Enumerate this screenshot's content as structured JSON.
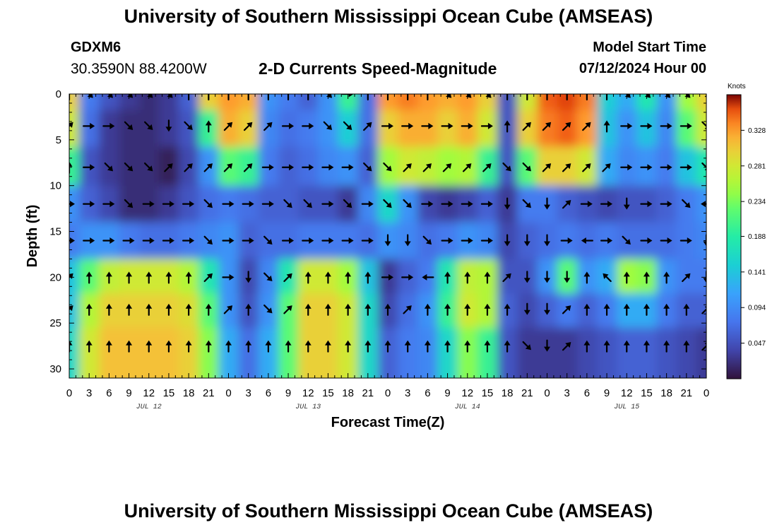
{
  "header": {
    "title": "University of Southern Mississippi Ocean Cube (AMSEAS)",
    "station_id": "GDXM6",
    "coords": "30.3590N  88.4200W",
    "subtitle": "2-D Currents Speed-Magnitude",
    "model_start_label": "Model Start Time",
    "model_start_value": "07/12/2024 Hour 00"
  },
  "footer": {
    "title": "University of Southern Mississippi Ocean Cube (AMSEAS)"
  },
  "chart_data": {
    "type": "heatmap",
    "title": "2-D Currents Speed-Magnitude",
    "xlabel": "Forecast Time(Z)",
    "ylabel": "Depth (ft)",
    "units": "Knots",
    "x_range_hours": [
      0,
      96
    ],
    "y_range_ft": [
      0,
      31
    ],
    "y_inverted": true,
    "x_tick_labels": [
      "0",
      "3",
      "6",
      "9",
      "12",
      "15",
      "18",
      "21",
      "0",
      "3",
      "6",
      "9",
      "12",
      "15",
      "18",
      "21",
      "0",
      "3",
      "6",
      "9",
      "12",
      "15",
      "18",
      "21",
      "0",
      "3",
      "6",
      "9",
      "12",
      "15",
      "18",
      "21",
      "0"
    ],
    "y_ticks": [
      0,
      5,
      10,
      15,
      20,
      25,
      30
    ],
    "date_labels": [
      {
        "label": "JUL 12",
        "hour": 12
      },
      {
        "label": "JUL 13",
        "hour": 36
      },
      {
        "label": "JUL 14",
        "hour": 60
      },
      {
        "label": "JUL 15",
        "hour": 84
      }
    ],
    "colorbar": {
      "label": "Knots",
      "range": [
        0.0,
        0.375
      ],
      "ticks": [
        "0.328",
        "0.281",
        "0.234",
        "0.188",
        "0.141",
        "0.094",
        "0.047"
      ],
      "tick_values": [
        0.328,
        0.281,
        0.234,
        0.188,
        0.141,
        0.094,
        0.047
      ]
    },
    "grid": false,
    "depth_rows_ft": [
      0,
      3.5,
      8,
      12,
      16,
      20,
      23.5,
      27.5
    ],
    "time_cols_hours": [
      0,
      3,
      6,
      9,
      12,
      15,
      18,
      21,
      24,
      27,
      30,
      33,
      36,
      39,
      42,
      45,
      48,
      51,
      54,
      57,
      60,
      63,
      66,
      69,
      72,
      75,
      78,
      81,
      84,
      87,
      90,
      93,
      96
    ],
    "speed_knots": [
      [
        0.3,
        0.08,
        0.05,
        0.03,
        0.02,
        0.03,
        0.06,
        0.3,
        0.33,
        0.32,
        0.1,
        0.08,
        0.06,
        0.1,
        0.2,
        0.07,
        0.33,
        0.34,
        0.33,
        0.32,
        0.33,
        0.3,
        0.05,
        0.28,
        0.35,
        0.36,
        0.34,
        0.15,
        0.12,
        0.18,
        0.1,
        0.25,
        0.3
      ],
      [
        0.28,
        0.07,
        0.03,
        0.02,
        0.02,
        0.03,
        0.05,
        0.2,
        0.32,
        0.3,
        0.09,
        0.07,
        0.08,
        0.1,
        0.15,
        0.07,
        0.3,
        0.32,
        0.32,
        0.3,
        0.32,
        0.28,
        0.05,
        0.3,
        0.34,
        0.35,
        0.33,
        0.14,
        0.1,
        0.14,
        0.09,
        0.22,
        0.28
      ],
      [
        0.2,
        0.05,
        0.03,
        0.02,
        0.02,
        0.01,
        0.04,
        0.1,
        0.22,
        0.2,
        0.08,
        0.06,
        0.07,
        0.09,
        0.1,
        0.06,
        0.25,
        0.28,
        0.27,
        0.25,
        0.26,
        0.2,
        0.05,
        0.22,
        0.3,
        0.3,
        0.28,
        0.12,
        0.09,
        0.1,
        0.08,
        0.14,
        0.18
      ],
      [
        0.1,
        0.06,
        0.04,
        0.02,
        0.02,
        0.03,
        0.05,
        0.07,
        0.08,
        0.07,
        0.06,
        0.06,
        0.05,
        0.05,
        0.03,
        0.09,
        0.16,
        0.1,
        0.04,
        0.03,
        0.04,
        0.06,
        0.03,
        0.08,
        0.08,
        0.06,
        0.05,
        0.04,
        0.05,
        0.05,
        0.06,
        0.08,
        0.1
      ],
      [
        0.08,
        0.1,
        0.1,
        0.08,
        0.07,
        0.07,
        0.08,
        0.09,
        0.1,
        0.06,
        0.07,
        0.07,
        0.08,
        0.08,
        0.08,
        0.07,
        0.1,
        0.09,
        0.07,
        0.08,
        0.1,
        0.09,
        0.04,
        0.06,
        0.07,
        0.08,
        0.07,
        0.08,
        0.07,
        0.07,
        0.07,
        0.08,
        0.09
      ],
      [
        0.14,
        0.22,
        0.27,
        0.28,
        0.28,
        0.28,
        0.26,
        0.18,
        0.1,
        0.04,
        0.09,
        0.18,
        0.28,
        0.28,
        0.25,
        0.14,
        0.03,
        0.06,
        0.08,
        0.18,
        0.27,
        0.26,
        0.05,
        0.05,
        0.1,
        0.22,
        0.1,
        0.12,
        0.25,
        0.24,
        0.1,
        0.08,
        0.08
      ],
      [
        0.14,
        0.26,
        0.3,
        0.3,
        0.3,
        0.3,
        0.29,
        0.22,
        0.1,
        0.05,
        0.1,
        0.22,
        0.3,
        0.3,
        0.28,
        0.16,
        0.04,
        0.07,
        0.1,
        0.2,
        0.28,
        0.26,
        0.06,
        0.04,
        0.06,
        0.08,
        0.06,
        0.08,
        0.12,
        0.12,
        0.08,
        0.06,
        0.06
      ],
      [
        0.16,
        0.28,
        0.31,
        0.31,
        0.31,
        0.31,
        0.3,
        0.24,
        0.12,
        0.07,
        0.12,
        0.22,
        0.3,
        0.3,
        0.28,
        0.16,
        0.06,
        0.08,
        0.09,
        0.16,
        0.24,
        0.2,
        0.05,
        0.03,
        0.03,
        0.03,
        0.04,
        0.05,
        0.06,
        0.06,
        0.05,
        0.04,
        0.03
      ]
    ],
    "direction_deg": [
      [
        0,
        135,
        135,
        135,
        135,
        135,
        0,
        0,
        0,
        0,
        0,
        0,
        0,
        135,
        90,
        0,
        0,
        0,
        0,
        135,
        135,
        135,
        0,
        0,
        0,
        0,
        0,
        0,
        135,
        135,
        135,
        135,
        135
      ],
      [
        45,
        90,
        90,
        135,
        135,
        180,
        135,
        0,
        45,
        45,
        45,
        90,
        90,
        135,
        135,
        45,
        90,
        90,
        90,
        90,
        90,
        90,
        0,
        45,
        45,
        45,
        45,
        0,
        90,
        90,
        90,
        90,
        135
      ],
      [
        0,
        90,
        135,
        135,
        135,
        45,
        45,
        45,
        45,
        45,
        90,
        90,
        90,
        90,
        90,
        135,
        135,
        45,
        45,
        45,
        45,
        45,
        135,
        135,
        45,
        45,
        45,
        45,
        90,
        90,
        90,
        90,
        135
      ],
      [
        90,
        90,
        90,
        135,
        90,
        90,
        90,
        135,
        90,
        90,
        90,
        135,
        135,
        90,
        135,
        90,
        135,
        135,
        90,
        90,
        90,
        90,
        180,
        135,
        180,
        45,
        90,
        90,
        180,
        90,
        90,
        135,
        270
      ],
      [
        90,
        90,
        90,
        90,
        90,
        90,
        90,
        135,
        90,
        90,
        135,
        90,
        90,
        90,
        90,
        90,
        180,
        180,
        135,
        90,
        90,
        90,
        180,
        180,
        180,
        90,
        270,
        90,
        135,
        90,
        90,
        90,
        180
      ],
      [
        45,
        0,
        0,
        0,
        0,
        0,
        0,
        45,
        90,
        180,
        135,
        45,
        0,
        0,
        0,
        0,
        90,
        90,
        270,
        0,
        0,
        0,
        45,
        180,
        180,
        180,
        0,
        315,
        0,
        0,
        0,
        45,
        180
      ],
      [
        45,
        0,
        0,
        0,
        0,
        0,
        0,
        0,
        45,
        0,
        135,
        45,
        0,
        0,
        0,
        0,
        0,
        45,
        0,
        0,
        0,
        0,
        0,
        180,
        180,
        45,
        0,
        0,
        0,
        0,
        0,
        0,
        45
      ],
      [
        0,
        0,
        0,
        0,
        0,
        0,
        0,
        0,
        0,
        0,
        0,
        0,
        0,
        0,
        0,
        0,
        0,
        0,
        0,
        0,
        0,
        0,
        0,
        135,
        180,
        45,
        0,
        0,
        0,
        0,
        0,
        0,
        45
      ]
    ]
  }
}
